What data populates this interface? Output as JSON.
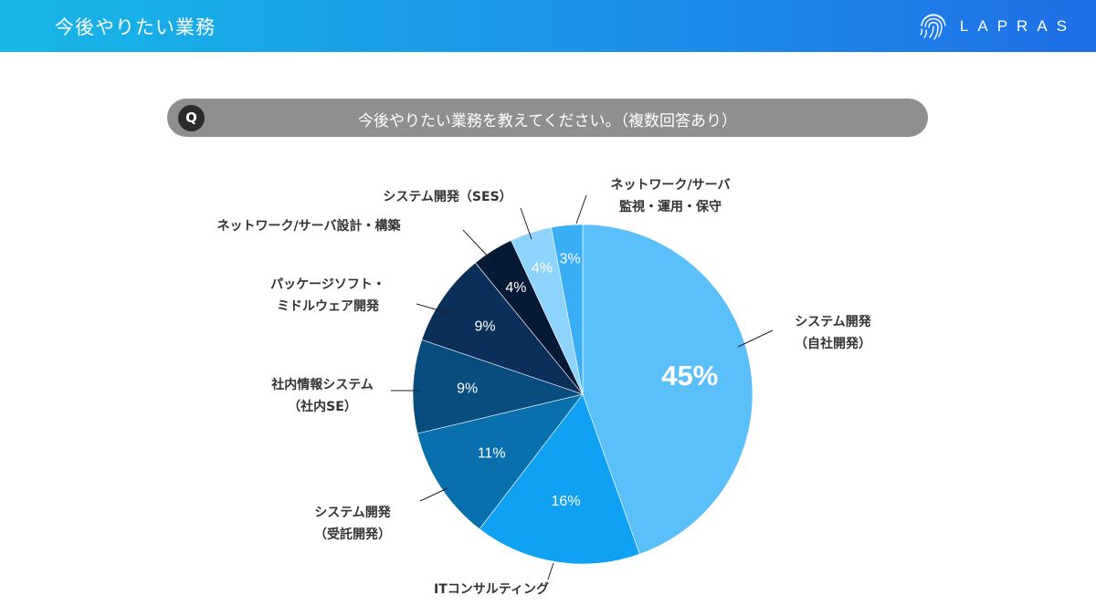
{
  "header": {
    "title": "今後やりたい業務",
    "brand": "LAPRAS"
  },
  "question": {
    "badge": "Q",
    "text": "今後やりたい業務を教えてください。（複数回答あり）"
  },
  "colors": {
    "header_start": "#17b6e6",
    "header_end": "#1f6fe6",
    "question_bar": "#8f8f8f"
  },
  "chart_data": {
    "type": "pie",
    "title": "今後やりたい業務",
    "start": "12 o'clock",
    "direction": "clockwise",
    "slices": [
      {
        "label_lines": [
          "システム開発",
          "（自社開発）"
        ],
        "value": 45,
        "display": "45%",
        "color": "#5bbffa"
      },
      {
        "label_lines": [
          "ITコンサルティング"
        ],
        "value": 16,
        "display": "16%",
        "color": "#10a1f3"
      },
      {
        "label_lines": [
          "システム開発",
          "（受託開発）"
        ],
        "value": 11,
        "display": "11%",
        "color": "#0a6fad"
      },
      {
        "label_lines": [
          "社内情報システム",
          "（社内SE）"
        ],
        "value": 9,
        "display": "9%",
        "color": "#084d7d"
      },
      {
        "label_lines": [
          "パッケージソフト・",
          "ミドルウェア開発"
        ],
        "value": 9,
        "display": "9%",
        "color": "#0b2f58"
      },
      {
        "label_lines": [
          "ネットワーク/サーバ設計・構築"
        ],
        "value": 4,
        "display": "4%",
        "color": "#061935"
      },
      {
        "label_lines": [
          "システム開発（SES）"
        ],
        "value": 4,
        "display": "4%",
        "color": "#8ed3fb"
      },
      {
        "label_lines": [
          "ネットワーク/サーバ",
          "監視・運用・保守"
        ],
        "value": 3,
        "display": "3%",
        "color": "#3aaef5"
      }
    ]
  }
}
